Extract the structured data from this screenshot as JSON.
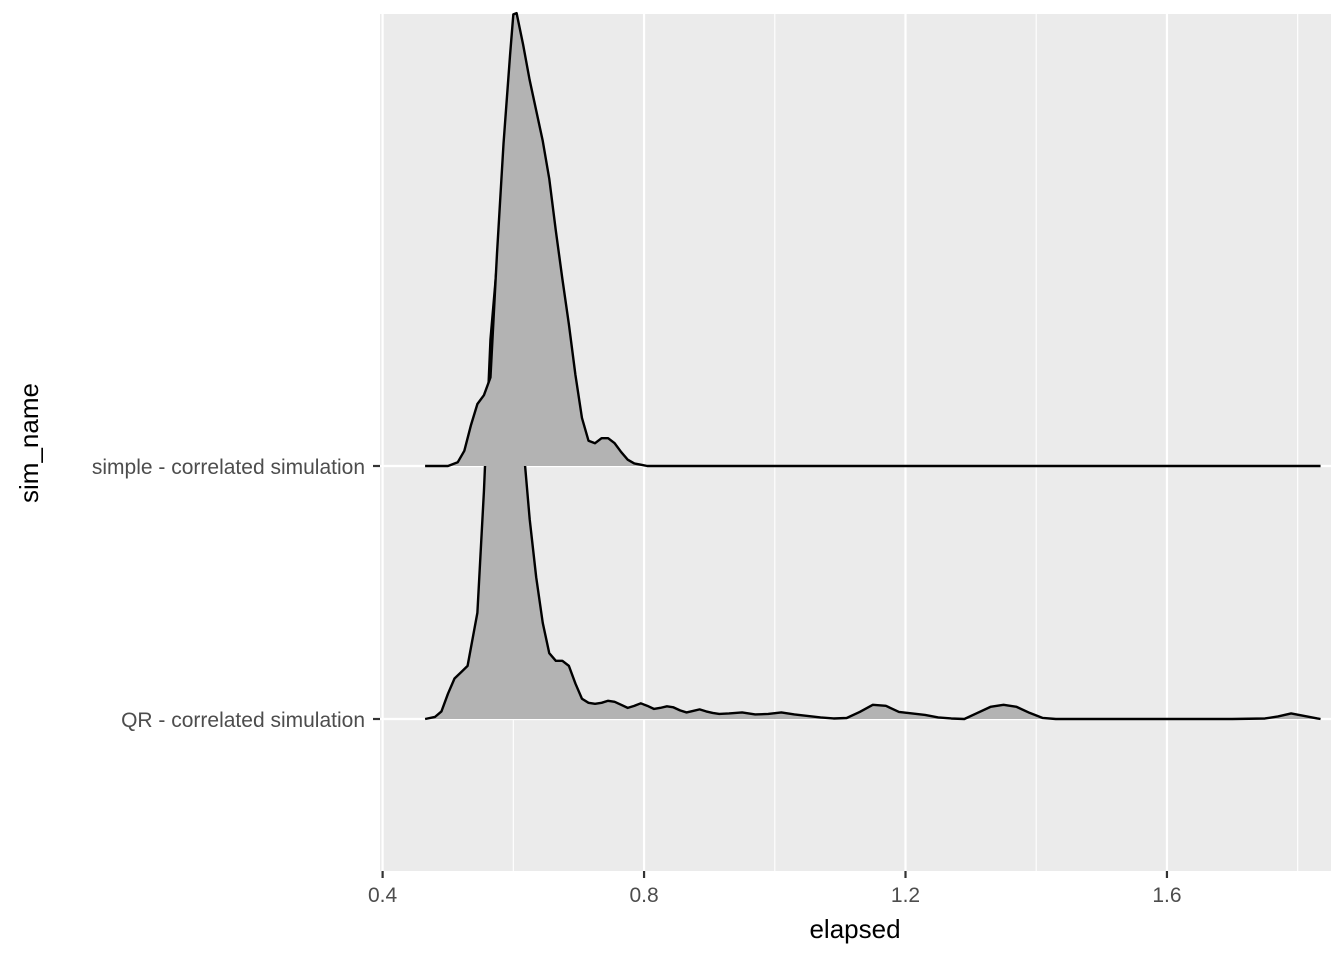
{
  "chart_data": {
    "type": "ridgeline-density",
    "xlabel": "elapsed",
    "ylabel": "sim_name",
    "xlim": [
      0.396,
      1.851
    ],
    "x_ticks": [
      {
        "value": 0.4,
        "label": "0.4"
      },
      {
        "value": 0.8,
        "label": "0.8"
      },
      {
        "value": 1.2,
        "label": "1.2"
      },
      {
        "value": 1.6,
        "label": "1.6"
      }
    ],
    "x_minor_ticks": [
      0.6,
      1.0,
      1.4,
      1.8
    ],
    "categories": [
      "QR - correlated simulation",
      "simple - correlated simulation"
    ],
    "grid": true,
    "legend": "none",
    "fill_color": "#b3b3b3",
    "line_color": "#000000",
    "panel_color": "#ebebeb",
    "grid_color": "#ffffff",
    "series": [
      {
        "category": "QR - correlated simulation",
        "density_units_note": "relative ridge height; 1.0 = spacing between categories",
        "x": [
          0.465,
          0.48,
          0.49,
          0.5,
          0.51,
          0.52,
          0.53,
          0.545,
          0.555,
          0.565,
          0.575,
          0.585,
          0.595,
          0.6,
          0.605,
          0.615,
          0.625,
          0.635,
          0.645,
          0.655,
          0.665,
          0.675,
          0.685,
          0.695,
          0.705,
          0.715,
          0.725,
          0.735,
          0.745,
          0.755,
          0.765,
          0.775,
          0.785,
          0.795,
          0.805,
          0.815,
          0.825,
          0.835,
          0.845,
          0.855,
          0.865,
          0.875,
          0.885,
          0.895,
          0.905,
          0.915,
          0.93,
          0.95,
          0.97,
          0.99,
          1.01,
          1.03,
          1.05,
          1.07,
          1.09,
          1.11,
          1.13,
          1.15,
          1.17,
          1.19,
          1.21,
          1.23,
          1.25,
          1.27,
          1.29,
          1.31,
          1.33,
          1.35,
          1.37,
          1.39,
          1.41,
          1.43,
          1.5,
          1.6,
          1.7,
          1.75,
          1.77,
          1.79,
          1.81,
          1.83,
          1.835
        ],
        "density": [
          0.0,
          0.008,
          0.03,
          0.1,
          0.16,
          0.185,
          0.21,
          0.42,
          0.9,
          1.5,
          1.8,
          1.8,
          1.625,
          1.53,
          1.39,
          1.09,
          0.79,
          0.56,
          0.38,
          0.26,
          0.23,
          0.23,
          0.21,
          0.14,
          0.08,
          0.064,
          0.06,
          0.064,
          0.072,
          0.068,
          0.056,
          0.044,
          0.052,
          0.062,
          0.052,
          0.04,
          0.044,
          0.05,
          0.046,
          0.034,
          0.026,
          0.032,
          0.038,
          0.03,
          0.024,
          0.02,
          0.022,
          0.026,
          0.018,
          0.02,
          0.026,
          0.018,
          0.012,
          0.006,
          0.002,
          0.004,
          0.028,
          0.056,
          0.052,
          0.028,
          0.022,
          0.016,
          0.006,
          0.002,
          0.0,
          0.024,
          0.048,
          0.056,
          0.048,
          0.024,
          0.004,
          0.0,
          0.0,
          0.0,
          0.0,
          0.002,
          0.01,
          0.022,
          0.012,
          0.002,
          0.0
        ]
      },
      {
        "category": "simple - correlated simulation",
        "density_units_note": "relative ridge height; 1.0 = spacing between categories",
        "x": [
          0.465,
          0.5,
          0.515,
          0.525,
          0.535,
          0.545,
          0.555,
          0.565,
          0.575,
          0.585,
          0.595,
          0.6,
          0.605,
          0.615,
          0.625,
          0.635,
          0.645,
          0.655,
          0.665,
          0.675,
          0.685,
          0.695,
          0.705,
          0.715,
          0.725,
          0.735,
          0.745,
          0.755,
          0.765,
          0.775,
          0.785,
          0.795,
          0.805,
          0.815,
          0.825,
          0.835,
          0.845,
          0.855,
          0.865,
          0.875,
          0.9,
          1.0,
          1.2,
          1.4,
          1.6,
          1.835
        ],
        "density": [
          0.0,
          0.0,
          0.015,
          0.06,
          0.16,
          0.245,
          0.28,
          0.35,
          0.84,
          1.275,
          1.625,
          1.785,
          1.79,
          1.665,
          1.525,
          1.405,
          1.285,
          1.135,
          0.93,
          0.74,
          0.56,
          0.36,
          0.19,
          0.1,
          0.09,
          0.11,
          0.11,
          0.09,
          0.055,
          0.025,
          0.01,
          0.005,
          0.0,
          0.0,
          0.0,
          0.0,
          0.0,
          0.0,
          0.0,
          0.0,
          0.0,
          0.0,
          0.0,
          0.0,
          0.0,
          0.0
        ]
      }
    ]
  }
}
